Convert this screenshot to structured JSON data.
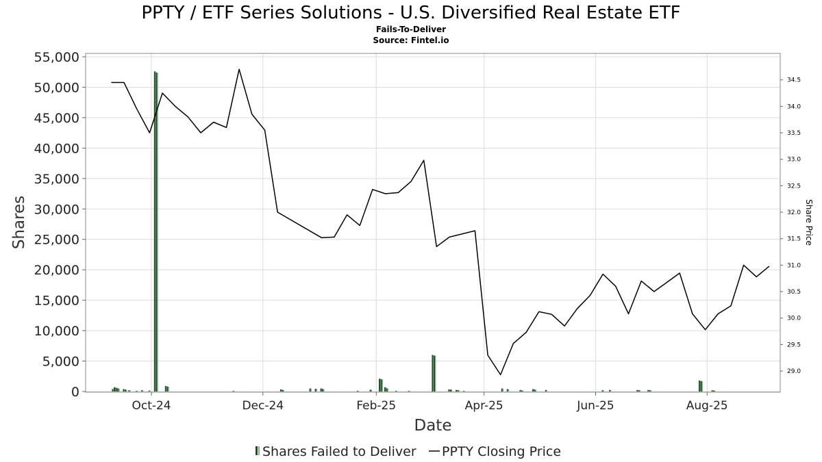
{
  "title": "PPTY / ETF Series Solutions - U.S. Diversified Real Estate ETF",
  "subtitle_lines": [
    "Fails-To-Deliver",
    "Source: Fintel.io"
  ],
  "chart_data": {
    "type": "bar",
    "xlabel": "Date",
    "ylabel": "Shares",
    "y2label": "Share Price",
    "ylim": [
      0,
      55000
    ],
    "y_ticks": [
      "0",
      "5,000",
      "10,000",
      "15,000",
      "20,000",
      "25,000",
      "30,000",
      "35,000",
      "40,000",
      "45,000",
      "50,000",
      "55,000"
    ],
    "y2lim": [
      28.6,
      35.0
    ],
    "y2_ticks": [
      "29.0",
      "29.5",
      "30.0",
      "30.5",
      "31.0",
      "31.5",
      "32.0",
      "32.5",
      "33.0",
      "33.5",
      "34.0",
      "34.5"
    ],
    "x_range": [
      "2024-08-26",
      "2025-09-10"
    ],
    "x_ticks": [
      {
        "label": "Oct-24",
        "date": "2024-10-01"
      },
      {
        "label": "Dec-24",
        "date": "2024-12-01"
      },
      {
        "label": "Feb-25",
        "date": "2025-02-01"
      },
      {
        "label": "Apr-25",
        "date": "2025-04-01"
      },
      {
        "label": "Jun-25",
        "date": "2025-06-01"
      },
      {
        "label": "Aug-25",
        "date": "2025-08-01"
      }
    ],
    "grid": true,
    "legend_position": "bottom-center",
    "series": [
      {
        "name": "Shares Failed to Deliver",
        "type": "bar",
        "color": "#1c4a25",
        "points": [
          [
            "2024-09-10",
            400
          ],
          [
            "2024-09-11",
            700
          ],
          [
            "2024-09-12",
            600
          ],
          [
            "2024-09-13",
            500
          ],
          [
            "2024-09-16",
            400
          ],
          [
            "2024-09-17",
            300
          ],
          [
            "2024-09-19",
            200
          ],
          [
            "2024-09-23",
            100
          ],
          [
            "2024-09-26",
            200
          ],
          [
            "2024-09-30",
            150
          ],
          [
            "2024-10-03",
            52600
          ],
          [
            "2024-10-04",
            52400
          ],
          [
            "2024-10-09",
            900
          ],
          [
            "2024-10-10",
            800
          ],
          [
            "2024-11-15",
            100
          ],
          [
            "2024-12-11",
            350
          ],
          [
            "2024-12-12",
            250
          ],
          [
            "2024-12-27",
            500
          ],
          [
            "2024-12-30",
            450
          ],
          [
            "2025-01-02",
            500
          ],
          [
            "2025-01-03",
            400
          ],
          [
            "2025-01-22",
            100
          ],
          [
            "2025-01-29",
            300
          ],
          [
            "2025-02-03",
            2100
          ],
          [
            "2025-02-04",
            2000
          ],
          [
            "2025-02-06",
            700
          ],
          [
            "2025-02-07",
            500
          ],
          [
            "2025-02-12",
            100
          ],
          [
            "2025-02-19",
            100
          ],
          [
            "2025-03-04",
            6000
          ],
          [
            "2025-03-05",
            5900
          ],
          [
            "2025-03-13",
            350
          ],
          [
            "2025-03-14",
            300
          ],
          [
            "2025-03-17",
            250
          ],
          [
            "2025-03-18",
            200
          ],
          [
            "2025-03-21",
            100
          ],
          [
            "2025-04-11",
            500
          ],
          [
            "2025-04-14",
            400
          ],
          [
            "2025-04-21",
            250
          ],
          [
            "2025-04-22",
            150
          ],
          [
            "2025-04-28",
            400
          ],
          [
            "2025-04-29",
            300
          ],
          [
            "2025-05-05",
            250
          ],
          [
            "2025-06-05",
            200
          ],
          [
            "2025-06-09",
            250
          ],
          [
            "2025-06-24",
            250
          ],
          [
            "2025-06-25",
            200
          ],
          [
            "2025-06-30",
            250
          ],
          [
            "2025-07-01",
            200
          ],
          [
            "2025-07-28",
            1800
          ],
          [
            "2025-07-29",
            1700
          ],
          [
            "2025-08-04",
            200
          ],
          [
            "2025-08-05",
            150
          ]
        ]
      },
      {
        "name": "PPTY Closing Price",
        "type": "line",
        "color": "#000000",
        "points": [
          [
            "2024-09-09",
            34.45
          ],
          [
            "2024-09-16",
            34.45
          ],
          [
            "2024-09-23",
            33.95
          ],
          [
            "2024-09-30",
            33.5
          ],
          [
            "2024-10-07",
            34.25
          ],
          [
            "2024-10-14",
            34.0
          ],
          [
            "2024-10-21",
            33.8
          ],
          [
            "2024-10-28",
            33.5
          ],
          [
            "2024-11-04",
            33.7
          ],
          [
            "2024-11-11",
            33.6
          ],
          [
            "2024-11-18",
            34.7
          ],
          [
            "2024-11-25",
            33.85
          ],
          [
            "2024-12-02",
            33.55
          ],
          [
            "2024-12-09",
            32.0
          ],
          [
            "2025-01-02",
            31.52
          ],
          [
            "2025-01-09",
            31.53
          ],
          [
            "2025-01-16",
            31.95
          ],
          [
            "2025-01-23",
            31.75
          ],
          [
            "2025-01-30",
            32.43
          ],
          [
            "2025-02-06",
            32.35
          ],
          [
            "2025-02-13",
            32.37
          ],
          [
            "2025-02-20",
            32.58
          ],
          [
            "2025-02-27",
            32.98
          ],
          [
            "2025-03-06",
            31.35
          ],
          [
            "2025-03-13",
            31.53
          ],
          [
            "2025-03-27",
            31.65
          ],
          [
            "2025-04-03",
            29.3
          ],
          [
            "2025-04-10",
            28.93
          ],
          [
            "2025-04-17",
            29.52
          ],
          [
            "2025-04-24",
            29.73
          ],
          [
            "2025-05-01",
            30.12
          ],
          [
            "2025-05-08",
            30.07
          ],
          [
            "2025-05-15",
            29.85
          ],
          [
            "2025-05-22",
            30.18
          ],
          [
            "2025-05-29",
            30.43
          ],
          [
            "2025-06-05",
            30.83
          ],
          [
            "2025-06-12",
            30.6
          ],
          [
            "2025-06-19",
            30.08
          ],
          [
            "2025-06-26",
            30.7
          ],
          [
            "2025-07-03",
            30.5
          ],
          [
            "2025-07-17",
            30.85
          ],
          [
            "2025-07-24",
            30.08
          ],
          [
            "2025-07-31",
            29.78
          ],
          [
            "2025-08-07",
            30.08
          ],
          [
            "2025-08-14",
            30.23
          ],
          [
            "2025-08-21",
            31.0
          ],
          [
            "2025-08-28",
            30.78
          ],
          [
            "2025-09-04",
            30.98
          ]
        ]
      }
    ]
  }
}
